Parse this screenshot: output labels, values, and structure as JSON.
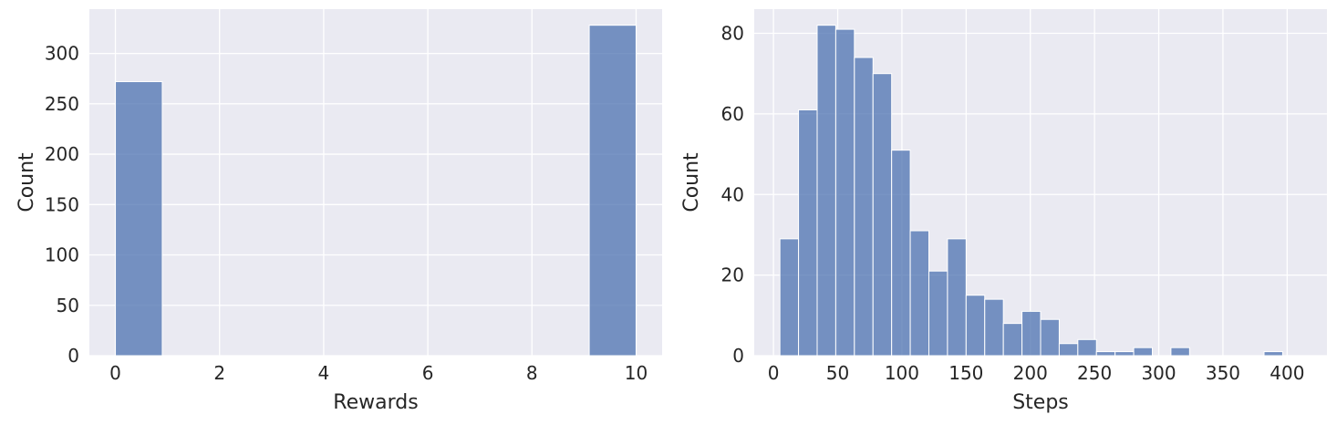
{
  "chart_data": [
    {
      "type": "bar",
      "title": "",
      "xlabel": "Rewards",
      "ylabel": "Count",
      "xlim": [
        -0.5,
        10.5
      ],
      "ylim": [
        0,
        344
      ],
      "xticks": [
        0,
        2,
        4,
        6,
        8,
        10
      ],
      "yticks": [
        0,
        50,
        100,
        150,
        200,
        250,
        300
      ],
      "grid": true,
      "bins": [
        {
          "x0": 0,
          "x1": 0.9,
          "count": 272
        },
        {
          "x0": 9.1,
          "x1": 10,
          "count": 328
        }
      ]
    },
    {
      "type": "bar",
      "title": "",
      "xlabel": "Steps",
      "ylabel": "Count",
      "xlim": [
        -15,
        431
      ],
      "ylim": [
        0,
        86
      ],
      "xticks": [
        0,
        50,
        100,
        150,
        200,
        250,
        300,
        350,
        400
      ],
      "yticks": [
        0,
        20,
        40,
        60,
        80
      ],
      "grid": true,
      "bins": [
        {
          "x0": 5,
          "x1": 19.5,
          "count": 29
        },
        {
          "x0": 19.5,
          "x1": 34,
          "count": 61
        },
        {
          "x0": 34,
          "x1": 48.5,
          "count": 82
        },
        {
          "x0": 48.5,
          "x1": 63,
          "count": 81
        },
        {
          "x0": 63,
          "x1": 77.5,
          "count": 74
        },
        {
          "x0": 77.5,
          "x1": 92,
          "count": 70
        },
        {
          "x0": 92,
          "x1": 106.5,
          "count": 51
        },
        {
          "x0": 106.5,
          "x1": 121,
          "count": 31
        },
        {
          "x0": 121,
          "x1": 135.5,
          "count": 21
        },
        {
          "x0": 135.5,
          "x1": 150,
          "count": 29
        },
        {
          "x0": 150,
          "x1": 164.5,
          "count": 15
        },
        {
          "x0": 164.5,
          "x1": 179,
          "count": 14
        },
        {
          "x0": 179,
          "x1": 193.5,
          "count": 8
        },
        {
          "x0": 193.5,
          "x1": 208,
          "count": 11
        },
        {
          "x0": 208,
          "x1": 222.5,
          "count": 9
        },
        {
          "x0": 222.5,
          "x1": 237,
          "count": 3
        },
        {
          "x0": 237,
          "x1": 251.5,
          "count": 4
        },
        {
          "x0": 251.5,
          "x1": 266,
          "count": 1
        },
        {
          "x0": 266,
          "x1": 280.5,
          "count": 1
        },
        {
          "x0": 280.5,
          "x1": 295,
          "count": 2
        },
        {
          "x0": 295,
          "x1": 309.5,
          "count": 0
        },
        {
          "x0": 309.5,
          "x1": 324,
          "count": 2
        },
        {
          "x0": 324,
          "x1": 338.5,
          "count": 0
        },
        {
          "x0": 338.5,
          "x1": 353,
          "count": 0
        },
        {
          "x0": 353,
          "x1": 367.5,
          "count": 0
        },
        {
          "x0": 367.5,
          "x1": 382,
          "count": 0
        },
        {
          "x0": 382,
          "x1": 396.5,
          "count": 1
        }
      ]
    }
  ]
}
